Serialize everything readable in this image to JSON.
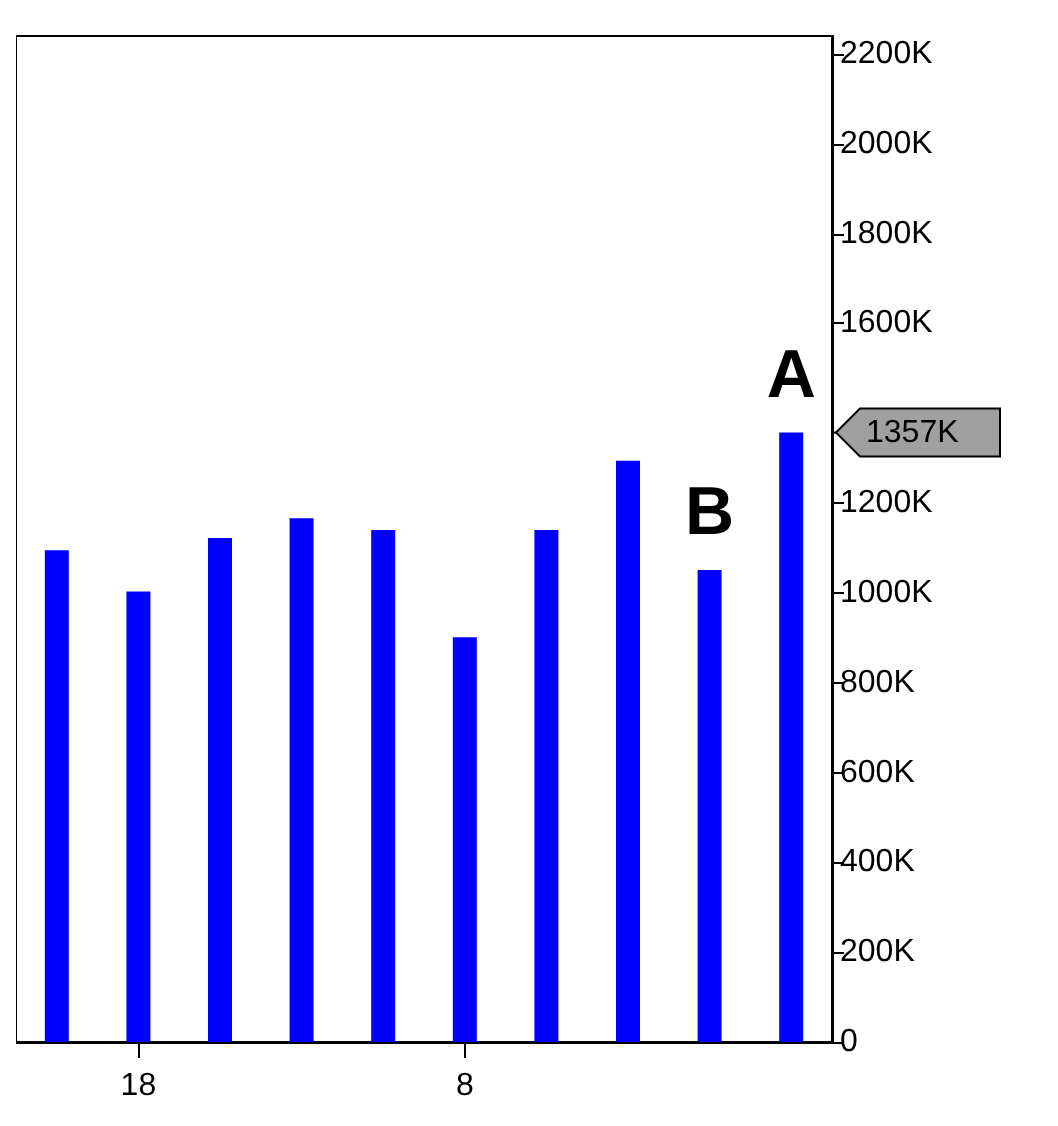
{
  "chart_data": {
    "type": "bar",
    "categories": [
      null,
      "18",
      null,
      null,
      null,
      "8",
      null,
      null,
      null,
      null
    ],
    "series": [
      {
        "color": "#0000ff",
        "values": [
          1095,
          1003,
          1122,
          1166,
          1140,
          901,
          1140,
          1294,
          1051,
          1357
        ],
        "value_labels": [
          null,
          null,
          null,
          null,
          null,
          null,
          null,
          null,
          "B",
          "A"
        ]
      }
    ],
    "ylim": [
      0,
      2240
    ],
    "yticks": [
      0,
      {
        "value": 200,
        "label": "200K"
      },
      {
        "value": 400,
        "label": "400K"
      },
      {
        "value": 600,
        "label": "600K"
      },
      {
        "value": 800,
        "label": "800K"
      },
      {
        "value": 1000,
        "label": "1000K"
      },
      {
        "value": 1200,
        "label": "1200K"
      },
      {
        "value": 1600,
        "label": "1600K"
      },
      {
        "value": 1800,
        "label": "1800K"
      },
      {
        "value": 2000,
        "label": "2000K"
      },
      {
        "value": 2200,
        "label": "2200K"
      }
    ],
    "annotations": [
      "1357K"
    ],
    "grid": false
  }
}
